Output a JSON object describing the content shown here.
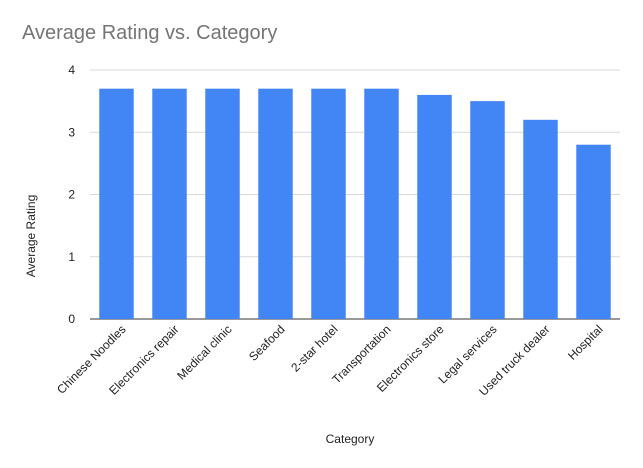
{
  "chart_data": {
    "type": "bar",
    "title": "Average Rating vs. Category",
    "xlabel": "Category",
    "ylabel": "Average Rating",
    "ylim": [
      0,
      4
    ],
    "yticks": [
      0,
      1,
      2,
      3,
      4
    ],
    "grid": true,
    "categories": [
      "Chinese Noodles",
      "Electronics repair",
      "Medical clinic",
      "Seafood",
      "2-star hotel",
      "Transportation",
      "Electronics store",
      "Legal services",
      "Used truck dealer",
      "Hospital"
    ],
    "series": [
      {
        "values": [
          3.7,
          3.7,
          3.7,
          3.7,
          3.7,
          3.7,
          3.6,
          3.5,
          3.2,
          2.8
        ]
      }
    ],
    "colors": {
      "bar": "#4285f4",
      "grid": "#d9d9d9",
      "title": "#757575",
      "text": "#222222"
    }
  }
}
